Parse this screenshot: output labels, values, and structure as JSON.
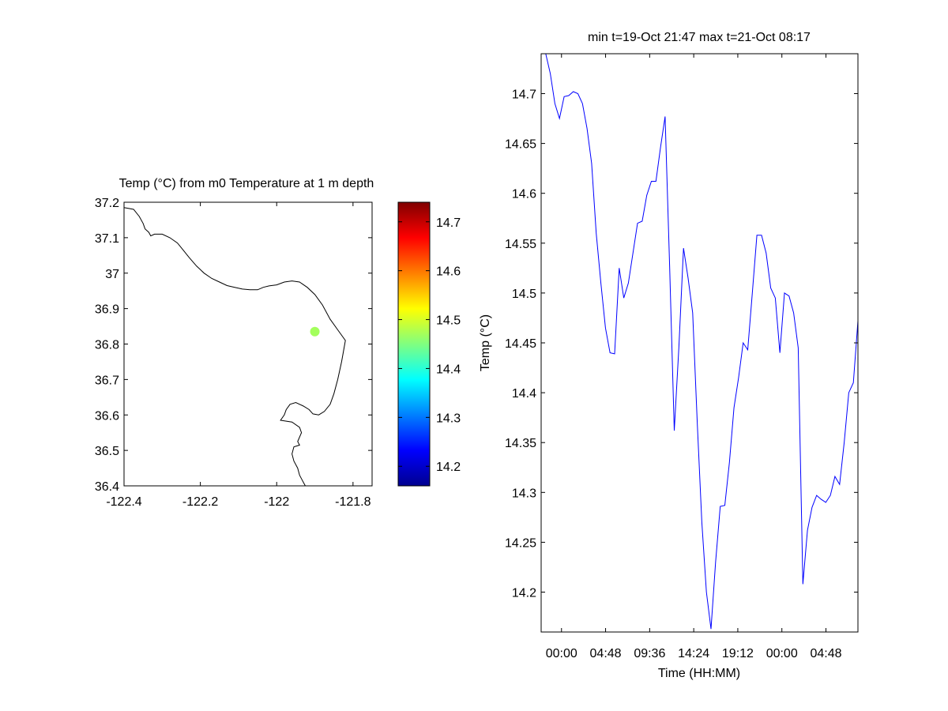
{
  "map_panel": {
    "title": "Temp (°C) from m0 Temperature at 1 m depth",
    "xlim": [
      -122.4,
      -121.75
    ],
    "ylim": [
      36.4,
      37.2
    ],
    "xticks": [
      {
        "value": -122.4,
        "label": "-122.4"
      },
      {
        "value": -122.2,
        "label": "-122.2"
      },
      {
        "value": -122.0,
        "label": "-122"
      },
      {
        "value": -121.8,
        "label": "-121.8"
      }
    ],
    "yticks": [
      {
        "value": 36.4,
        "label": "36.4"
      },
      {
        "value": 36.5,
        "label": "36.5"
      },
      {
        "value": 36.6,
        "label": "36.6"
      },
      {
        "value": 36.7,
        "label": "36.7"
      },
      {
        "value": 36.8,
        "label": "36.8"
      },
      {
        "value": 36.9,
        "label": "36.9"
      },
      {
        "value": 37.0,
        "label": "37"
      },
      {
        "value": 37.1,
        "label": "37.1"
      },
      {
        "value": 37.2,
        "label": "37.2"
      }
    ],
    "coastline_color": "#000000",
    "coastline": [
      [
        -122.4,
        37.185
      ],
      [
        -122.375,
        37.18
      ],
      [
        -122.36,
        37.16
      ],
      [
        -122.35,
        37.14
      ],
      [
        -122.345,
        37.125
      ],
      [
        -122.335,
        37.115
      ],
      [
        -122.33,
        37.105
      ],
      [
        -122.32,
        37.11
      ],
      [
        -122.3,
        37.11
      ],
      [
        -122.28,
        37.1
      ],
      [
        -122.26,
        37.085
      ],
      [
        -122.245,
        37.065
      ],
      [
        -122.23,
        37.045
      ],
      [
        -122.21,
        37.02
      ],
      [
        -122.19,
        37.0
      ],
      [
        -122.17,
        36.985
      ],
      [
        -122.15,
        36.975
      ],
      [
        -122.13,
        36.965
      ],
      [
        -122.11,
        36.96
      ],
      [
        -122.09,
        36.955
      ],
      [
        -122.07,
        36.953
      ],
      [
        -122.05,
        36.953
      ],
      [
        -122.035,
        36.96
      ],
      [
        -122.02,
        36.964
      ],
      [
        -122.0,
        36.967
      ],
      [
        -121.98,
        36.975
      ],
      [
        -121.96,
        36.978
      ],
      [
        -121.94,
        36.975
      ],
      [
        -121.92,
        36.96
      ],
      [
        -121.9,
        36.94
      ],
      [
        -121.88,
        36.91
      ],
      [
        -121.86,
        36.87
      ],
      [
        -121.84,
        36.84
      ],
      [
        -121.82,
        36.81
      ],
      [
        -121.825,
        36.78
      ],
      [
        -121.83,
        36.75
      ],
      [
        -121.84,
        36.7
      ],
      [
        -121.85,
        36.66
      ],
      [
        -121.86,
        36.63
      ],
      [
        -121.875,
        36.61
      ],
      [
        -121.89,
        36.6
      ],
      [
        -121.905,
        36.603
      ],
      [
        -121.915,
        36.615
      ],
      [
        -121.93,
        36.625
      ],
      [
        -121.95,
        36.635
      ],
      [
        -121.965,
        36.63
      ],
      [
        -121.975,
        36.615
      ],
      [
        -121.98,
        36.6
      ],
      [
        -121.99,
        36.585
      ],
      [
        -121.96,
        36.58
      ],
      [
        -121.94,
        36.565
      ],
      [
        -121.935,
        36.55
      ],
      [
        -121.945,
        36.525
      ],
      [
        -121.94,
        36.515
      ],
      [
        -121.955,
        36.51
      ],
      [
        -121.96,
        36.49
      ],
      [
        -121.955,
        36.47
      ],
      [
        -121.945,
        36.45
      ],
      [
        -121.94,
        36.43
      ],
      [
        -121.93,
        36.41
      ],
      [
        -121.925,
        36.4
      ]
    ],
    "station": {
      "lon": -121.9,
      "lat": 36.835,
      "value": 14.47
    }
  },
  "colorbar": {
    "range": [
      14.16,
      14.74
    ],
    "ticks": [
      {
        "value": 14.2,
        "label": "14.2"
      },
      {
        "value": 14.3,
        "label": "14.3"
      },
      {
        "value": 14.4,
        "label": "14.4"
      },
      {
        "value": 14.5,
        "label": "14.5"
      },
      {
        "value": 14.6,
        "label": "14.6"
      },
      {
        "value": 14.7,
        "label": "14.7"
      }
    ],
    "colormap": "jet"
  },
  "chart_data": {
    "type": "line",
    "title": "min t=19-Oct 21:47 max t=21-Oct 08:17",
    "xlabel": "Time (HH:MM)",
    "ylabel": "Temp (°C)",
    "xlim": [
      "19-Oct 21:47",
      "21-Oct 08:17"
    ],
    "ylim": [
      14.16,
      14.74
    ],
    "xticks": [
      {
        "time": "20-Oct 00:00",
        "label": "00:00"
      },
      {
        "time": "20-Oct 04:48",
        "label": "04:48"
      },
      {
        "time": "20-Oct 09:36",
        "label": "09:36"
      },
      {
        "time": "20-Oct 14:24",
        "label": "14:24"
      },
      {
        "time": "20-Oct 19:12",
        "label": "19:12"
      },
      {
        "time": "21-Oct 00:00",
        "label": "00:00"
      },
      {
        "time": "21-Oct 04:48",
        "label": "04:48"
      }
    ],
    "yticks": [
      {
        "value": 14.2,
        "label": "14.2"
      },
      {
        "value": 14.25,
        "label": "14.25"
      },
      {
        "value": 14.3,
        "label": "14.3"
      },
      {
        "value": 14.35,
        "label": "14.35"
      },
      {
        "value": 14.4,
        "label": "14.4"
      },
      {
        "value": 14.45,
        "label": "14.45"
      },
      {
        "value": 14.5,
        "label": "14.5"
      },
      {
        "value": 14.55,
        "label": "14.55"
      },
      {
        "value": 14.6,
        "label": "14.6"
      },
      {
        "value": 14.65,
        "label": "14.65"
      },
      {
        "value": 14.7,
        "label": "14.7"
      }
    ],
    "line_color": "#0000ff",
    "series": [
      {
        "x": [
          "19-Oct 21:47",
          "19-Oct 22:17",
          "19-Oct 22:47",
          "19-Oct 23:17",
          "19-Oct 23:47",
          "20-Oct 00:17",
          "20-Oct 00:47",
          "20-Oct 01:17",
          "20-Oct 01:47",
          "20-Oct 02:17",
          "20-Oct 02:47",
          "20-Oct 03:17",
          "20-Oct 03:47",
          "20-Oct 04:17",
          "20-Oct 04:47",
          "20-Oct 05:17",
          "20-Oct 05:47",
          "20-Oct 06:17",
          "20-Oct 06:47",
          "20-Oct 07:17",
          "20-Oct 07:47",
          "20-Oct 08:17",
          "20-Oct 08:47",
          "20-Oct 09:17",
          "20-Oct 09:47",
          "20-Oct 10:17",
          "20-Oct 10:47",
          "20-Oct 11:17",
          "20-Oct 11:47",
          "20-Oct 12:17",
          "20-Oct 12:47",
          "20-Oct 13:17",
          "20-Oct 13:47",
          "20-Oct 14:17",
          "20-Oct 14:47",
          "20-Oct 15:17",
          "20-Oct 15:47",
          "20-Oct 16:17",
          "20-Oct 16:47",
          "20-Oct 17:17",
          "20-Oct 17:47",
          "20-Oct 18:17",
          "20-Oct 18:47",
          "20-Oct 19:17",
          "20-Oct 19:47",
          "20-Oct 20:17",
          "20-Oct 20:47",
          "20-Oct 21:17",
          "20-Oct 21:47",
          "20-Oct 22:17",
          "20-Oct 22:47",
          "20-Oct 23:17",
          "20-Oct 23:47",
          "21-Oct 00:17",
          "21-Oct 00:47",
          "21-Oct 01:17",
          "21-Oct 01:47",
          "21-Oct 02:17",
          "21-Oct 02:47",
          "21-Oct 03:17",
          "21-Oct 03:47",
          "21-Oct 04:17",
          "21-Oct 04:47",
          "21-Oct 05:17",
          "21-Oct 05:47",
          "21-Oct 06:17",
          "21-Oct 06:47",
          "21-Oct 07:17",
          "21-Oct 07:47",
          "21-Oct 08:17"
        ],
        "y": [
          14.74,
          14.74,
          14.72,
          14.69,
          14.675,
          14.697,
          14.698,
          14.702,
          14.7,
          14.69,
          14.665,
          14.63,
          14.56,
          14.51,
          14.465,
          14.44,
          14.439,
          14.525,
          14.495,
          14.51,
          14.54,
          14.57,
          14.572,
          14.598,
          14.612,
          14.612,
          14.646,
          14.677,
          14.525,
          14.362,
          14.445,
          14.545,
          14.515,
          14.48,
          14.37,
          14.27,
          14.2,
          14.163,
          14.23,
          14.286,
          14.287,
          14.33,
          14.385,
          14.415,
          14.45,
          14.443,
          14.5,
          14.558,
          14.558,
          14.54,
          14.505,
          14.495,
          14.44,
          14.5,
          14.497,
          14.48,
          14.445,
          14.208,
          14.262,
          14.285,
          14.297,
          14.293,
          14.29,
          14.297,
          14.316,
          14.308,
          14.35,
          14.4,
          14.41,
          14.472
        ]
      }
    ]
  }
}
